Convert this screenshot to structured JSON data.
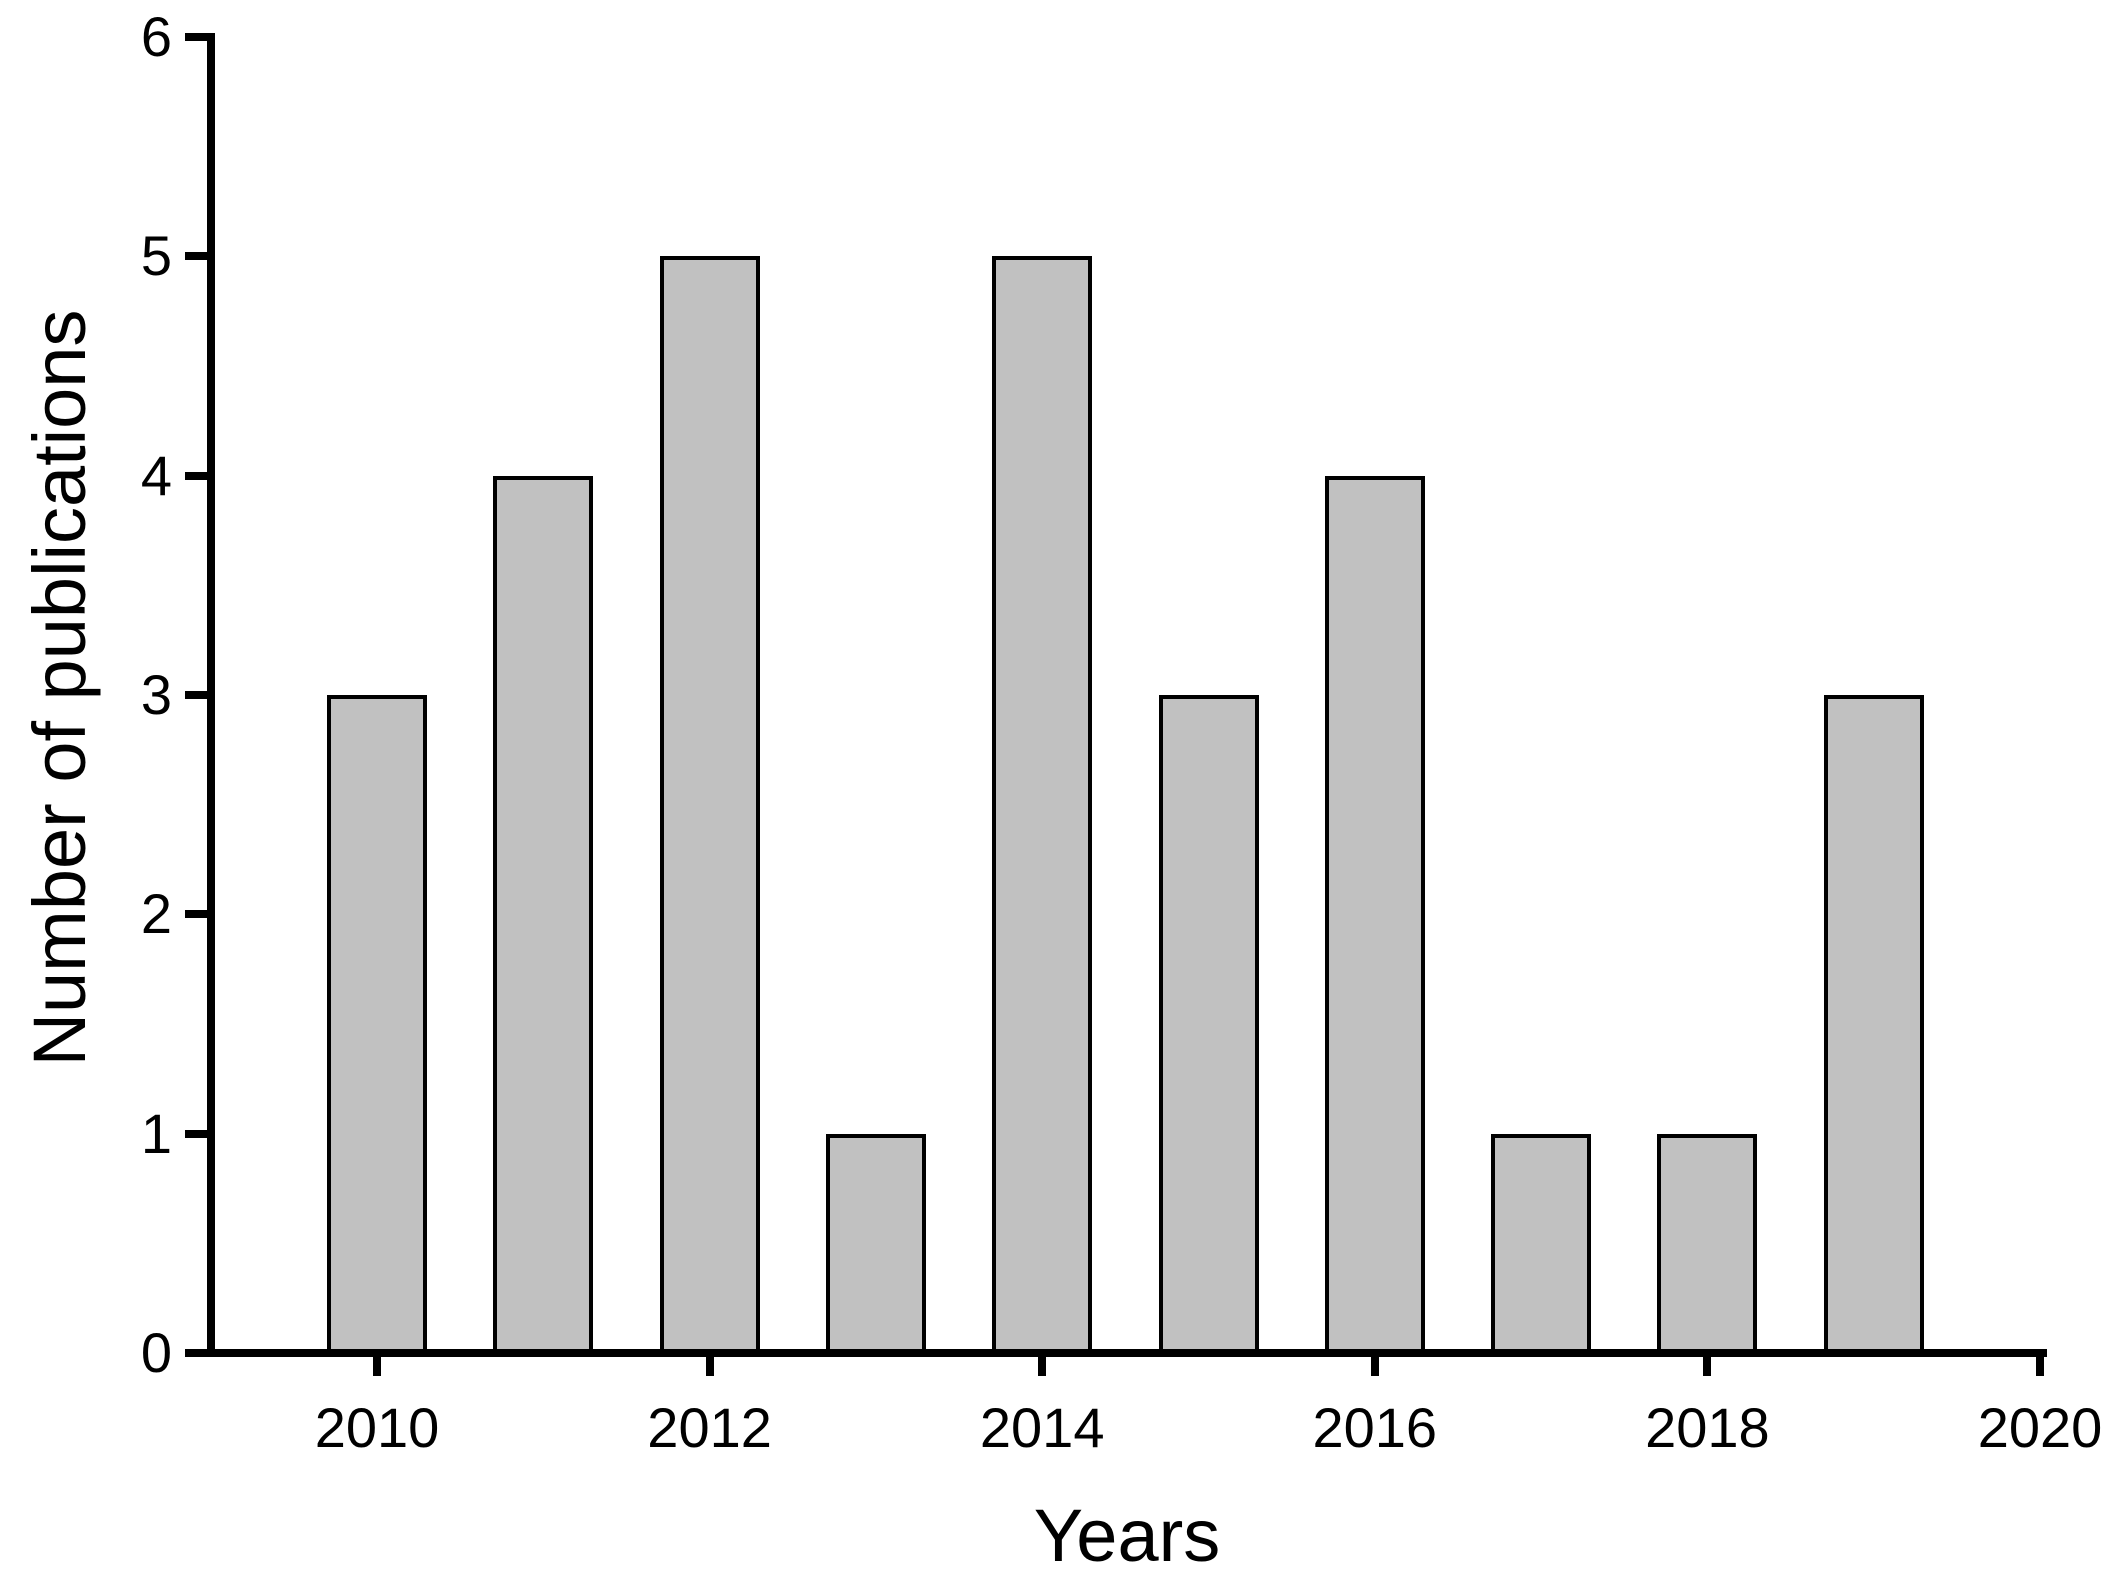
{
  "chart_data": {
    "type": "bar",
    "title": "",
    "xlabel": "Years",
    "ylabel": "Number of publications",
    "categories": [
      2010,
      2011,
      2012,
      2013,
      2014,
      2015,
      2016,
      2017,
      2018,
      2019
    ],
    "values": [
      3,
      4,
      5,
      1,
      5,
      3,
      4,
      1,
      1,
      3
    ],
    "x_tick_labels": [
      2010,
      2012,
      2014,
      2016,
      2018,
      2020
    ],
    "y_tick_labels": [
      0,
      1,
      2,
      3,
      4,
      5,
      6
    ],
    "xlim": [
      2009,
      2020
    ],
    "ylim": [
      0,
      6
    ],
    "grid": false,
    "legend_position": "none",
    "bar_fill_color": "#c1c1c1",
    "bar_border_color": "#000000",
    "axis_color": "#000000",
    "background_color": "#ffffff"
  }
}
